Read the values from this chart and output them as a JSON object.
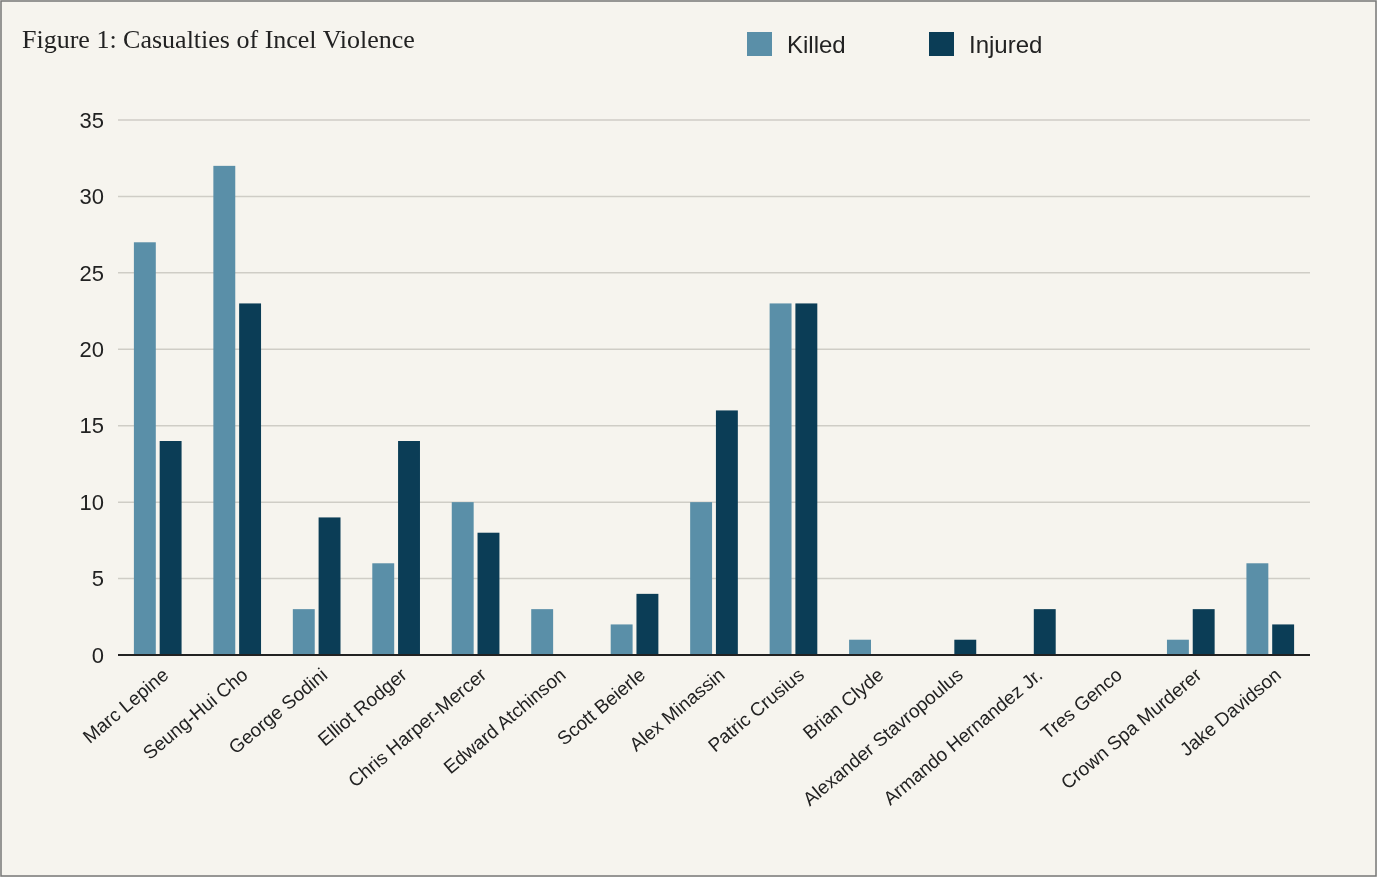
{
  "chart_data": {
    "type": "bar",
    "title": "Figure 1: Casualties of Incel Violence",
    "categories": [
      "Marc Lepine",
      "Seung-Hui Cho",
      "George Sodini",
      "Elliot Rodger",
      "Chris Harper-Mercer",
      "Edward Atchinson",
      "Scott Beierle",
      "Alex Minassin",
      "Patric Crusius",
      "Brian Clyde",
      "Alexander Stavropoulus",
      "Armando Hernandez Jr.",
      "Tres Genco",
      "Crown Spa Murderer",
      "Jake Davidson"
    ],
    "series": [
      {
        "name": "Killed",
        "color": "#5a8fa8",
        "values": [
          27,
          32,
          3,
          6,
          10,
          3,
          2,
          10,
          23,
          1,
          0,
          0,
          0,
          1,
          6
        ]
      },
      {
        "name": "Injured",
        "color": "#0b3d56",
        "values": [
          14,
          23,
          9,
          14,
          8,
          0,
          4,
          16,
          23,
          0,
          1,
          3,
          0,
          3,
          2
        ]
      }
    ],
    "ylim": [
      0,
      35
    ],
    "yticks": [
      0,
      5,
      10,
      15,
      20,
      25,
      30,
      35
    ],
    "grid": "y",
    "legend": "top"
  }
}
